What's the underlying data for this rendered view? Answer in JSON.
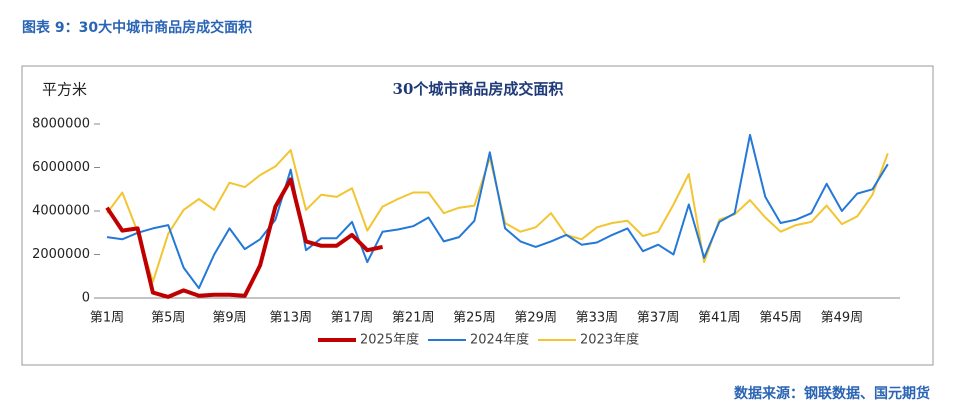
{
  "header": "图表 9：30大中城市商品房成交面积",
  "source": "数据来源：钢联数据、国元期货",
  "chart_data": {
    "type": "line",
    "title": "30个城市商品房成交面积",
    "y_label": "平方米",
    "categories": [
      "第1周",
      null,
      null,
      null,
      "第5周",
      null,
      null,
      null,
      "第9周",
      null,
      null,
      null,
      "第13周",
      null,
      null,
      null,
      "第17周",
      null,
      null,
      null,
      "第21周",
      null,
      null,
      null,
      "第25周",
      null,
      null,
      null,
      "第29周",
      null,
      null,
      null,
      "第33周",
      null,
      null,
      null,
      "第37周",
      null,
      null,
      null,
      "第41周",
      null,
      null,
      null,
      "第45周",
      null,
      null,
      null,
      "第49周",
      null,
      null,
      null
    ],
    "ylim": [
      0,
      8000000
    ],
    "yticks": [
      0,
      2000000,
      4000000,
      6000000,
      8000000
    ],
    "legend": "bottom",
    "series": [
      {
        "name": "2025年度",
        "color": "#c00000",
        "values": [
          4150000,
          3100000,
          3200000,
          250000,
          50000,
          350000,
          100000,
          150000,
          150000,
          100000,
          1500000,
          4200000,
          5450000,
          2600000,
          2400000,
          2400000,
          2900000,
          2200000,
          2350000,
          null,
          null,
          null,
          null,
          null,
          null,
          null,
          null,
          null,
          null,
          null,
          null,
          null,
          null,
          null,
          null,
          null,
          null,
          null,
          null,
          null,
          null,
          null,
          null,
          null,
          null,
          null,
          null,
          null,
          null,
          null,
          null,
          null
        ]
      },
      {
        "name": "2024年度",
        "color": "#2478d8",
        "values": [
          2800000,
          2700000,
          3000000,
          3200000,
          3350000,
          1400000,
          450000,
          2000000,
          3200000,
          2250000,
          2700000,
          3600000,
          5900000,
          2200000,
          2750000,
          2750000,
          3500000,
          1650000,
          3050000,
          3150000,
          3300000,
          3700000,
          2600000,
          2800000,
          3550000,
          6700000,
          3200000,
          2600000,
          2350000,
          2600000,
          2900000,
          2450000,
          2550000,
          2900000,
          3200000,
          2150000,
          2450000,
          2000000,
          4300000,
          1850000,
          3500000,
          3900000,
          7500000,
          4650000,
          3450000,
          3600000,
          3900000,
          5250000,
          4000000,
          4800000,
          5000000,
          6150000
        ]
      },
      {
        "name": "2023年度",
        "color": "#f2c531",
        "values": [
          3900000,
          4850000,
          3050000,
          750000,
          2950000,
          4050000,
          4550000,
          4050000,
          5300000,
          5100000,
          5650000,
          6050000,
          6800000,
          4050000,
          4750000,
          4650000,
          5050000,
          3100000,
          4200000,
          4550000,
          4850000,
          4850000,
          3900000,
          4150000,
          4250000,
          6450000,
          3450000,
          3050000,
          3250000,
          3900000,
          2900000,
          2700000,
          3250000,
          3450000,
          3550000,
          2850000,
          3050000,
          4300000,
          5700000,
          1650000,
          3600000,
          3850000,
          4500000,
          3700000,
          3050000,
          3350000,
          3500000,
          4250000,
          3400000,
          3750000,
          4750000,
          6650000
        ]
      }
    ]
  }
}
